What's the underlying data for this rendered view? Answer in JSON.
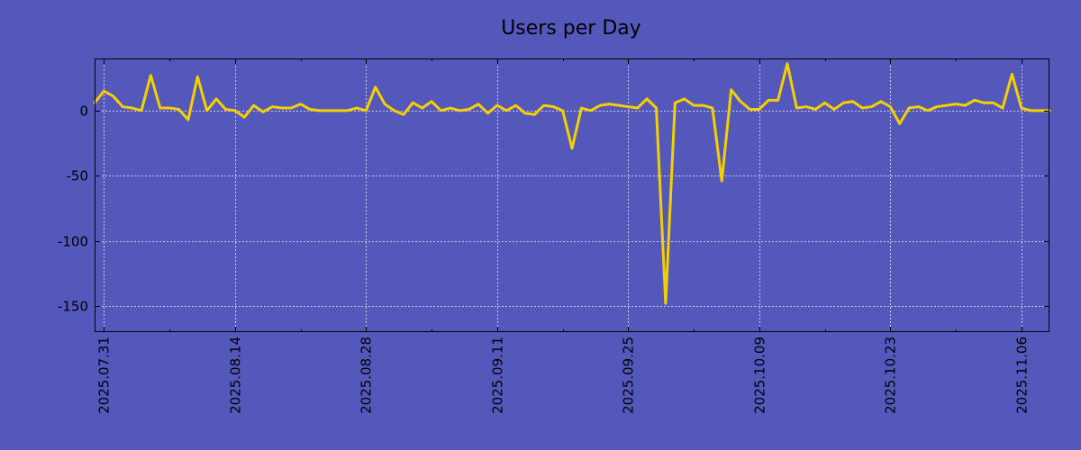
{
  "chart_data": {
    "type": "line",
    "title": "Users per Day",
    "xlabel": "",
    "ylabel": "",
    "ylim": [
      -170,
      40
    ],
    "yticks": [
      0,
      -50,
      -100,
      -150
    ],
    "ytick_labels": [
      "0",
      "-50",
      "-100",
      "-150"
    ],
    "x_start": "2025-07-30",
    "x_end": "2025-11-09",
    "xticks": [
      {
        "date": "2025-07-31",
        "label": "2025.07.31"
      },
      {
        "date": "2025-08-14",
        "label": "2025.08.14"
      },
      {
        "date": "2025-08-28",
        "label": "2025.08.28"
      },
      {
        "date": "2025-09-11",
        "label": "2025.09.11"
      },
      {
        "date": "2025-09-25",
        "label": "2025.09.25"
      },
      {
        "date": "2025-10-09",
        "label": "2025.10.09"
      },
      {
        "date": "2025-10-23",
        "label": "2025.10.23"
      },
      {
        "date": "2025-11-06",
        "label": "2025.11.06"
      }
    ],
    "grid": true,
    "colors": {
      "background": "#5558bb",
      "line": "#f5d000"
    },
    "series": [
      {
        "name": "Users per Day",
        "values": [
          6,
          15,
          11,
          3,
          2,
          0,
          27,
          2,
          2,
          1,
          -7,
          26,
          0,
          9,
          1,
          0,
          -5,
          4,
          -1,
          3,
          2,
          2,
          5,
          1,
          0,
          0,
          0,
          0,
          2,
          0,
          18,
          5,
          0,
          -3,
          6,
          2,
          7,
          0,
          2,
          0,
          1,
          5,
          -2,
          4,
          0,
          4,
          -2,
          -3,
          4,
          3,
          0,
          -29,
          2,
          0,
          4,
          5,
          4,
          3,
          2,
          9,
          2,
          -148,
          6,
          9,
          4,
          4,
          2,
          -54,
          16,
          7,
          1,
          1,
          8,
          8,
          36,
          2,
          3,
          1,
          6,
          1,
          6,
          7,
          2,
          3,
          7,
          3,
          -10,
          2,
          3,
          0,
          3,
          4,
          5,
          4,
          8,
          6,
          6,
          2,
          28,
          2,
          0,
          0,
          0
        ]
      }
    ]
  }
}
